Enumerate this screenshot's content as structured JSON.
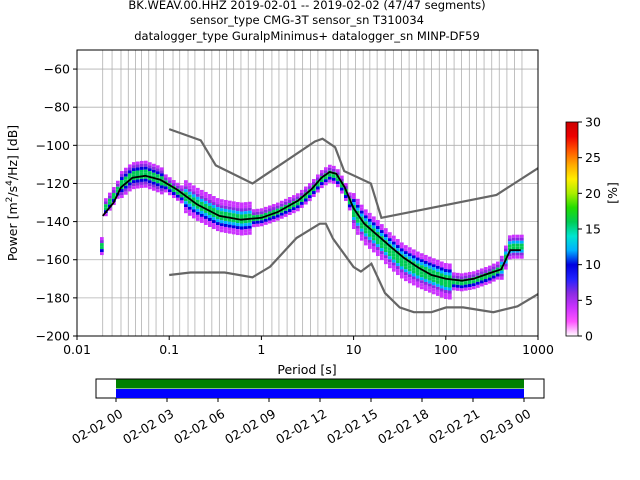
{
  "chart_data": {
    "type": "heatmap",
    "title_lines": [
      "BK.WEAV.00.HHZ   2019-02-01 -- 2019-02-02  (47/47 segments)",
      "sensor_type CMG-3T sensor_sn T310034",
      "datalogger_type GuralpMinimus+ datalogger_sn MINP-DF59"
    ],
    "xlabel": "Period [s]",
    "ylabel_parts": [
      "Power [m",
      "2",
      "/s",
      "4",
      "/Hz] [dB]"
    ],
    "x_scale": "log",
    "xlim": [
      0.01,
      1000
    ],
    "ylim": [
      -200,
      -50
    ],
    "x_tick_labels": [
      {
        "v": 0.01,
        "t": "0.01"
      },
      {
        "v": 0.1,
        "t": "0.1"
      },
      {
        "v": 1,
        "t": "1"
      },
      {
        "v": 10,
        "t": "10"
      },
      {
        "v": 100,
        "t": "100"
      },
      {
        "v": 1000,
        "t": "1000"
      }
    ],
    "y_ticks": [
      {
        "v": -60,
        "t": "−60"
      },
      {
        "v": -80,
        "t": "−80"
      },
      {
        "v": -100,
        "t": "−100"
      },
      {
        "v": -120,
        "t": "−120"
      },
      {
        "v": -140,
        "t": "−140"
      },
      {
        "v": -160,
        "t": "−160"
      },
      {
        "v": -180,
        "t": "−180"
      },
      {
        "v": -200,
        "t": "−200"
      }
    ],
    "grid_periods": [
      0.019,
      0.024,
      0.03,
      0.036,
      0.043,
      0.05,
      0.06,
      0.072,
      0.087,
      0.11,
      0.13,
      0.16,
      0.19,
      0.24,
      0.29,
      0.35,
      0.42,
      0.5,
      0.6,
      0.72,
      0.87,
      1.05,
      1.3,
      1.55,
      1.9,
      2.3,
      2.8,
      3.4,
      4.1,
      5,
      6,
      7.2,
      8.7,
      10.5,
      12.7,
      15,
      18,
      22,
      27,
      33,
      40,
      48,
      58,
      70,
      85,
      102,
      123,
      148,
      180,
      215,
      260,
      315,
      380,
      460,
      555,
      670
    ],
    "mean_curve": [
      [
        0.019,
        -137
      ],
      [
        0.025,
        -130
      ],
      [
        0.03,
        -122
      ],
      [
        0.04,
        -117
      ],
      [
        0.055,
        -116
      ],
      [
        0.08,
        -118
      ],
      [
        0.12,
        -123
      ],
      [
        0.2,
        -131
      ],
      [
        0.35,
        -137
      ],
      [
        0.6,
        -139
      ],
      [
        1,
        -138
      ],
      [
        1.5,
        -135
      ],
      [
        2.5,
        -129
      ],
      [
        3.5,
        -123
      ],
      [
        4.5,
        -117
      ],
      [
        5.5,
        -114
      ],
      [
        6.5,
        -115
      ],
      [
        8,
        -122
      ],
      [
        10,
        -133
      ],
      [
        13,
        -141
      ],
      [
        18,
        -147
      ],
      [
        25,
        -153
      ],
      [
        35,
        -159
      ],
      [
        50,
        -164
      ],
      [
        70,
        -168
      ],
      [
        100,
        -170
      ],
      [
        150,
        -171
      ],
      [
        200,
        -170
      ],
      [
        300,
        -167
      ],
      [
        400,
        -165
      ],
      [
        500,
        -155
      ],
      [
        650,
        -155
      ]
    ],
    "mode_band": [
      [
        0.019,
        -135
      ],
      [
        0.025,
        -127
      ],
      [
        0.03,
        -121
      ],
      [
        0.04,
        -116
      ],
      [
        0.055,
        -115
      ],
      [
        0.08,
        -118
      ],
      [
        0.12,
        -124
      ],
      [
        0.2,
        -131
      ],
      [
        0.35,
        -137
      ],
      [
        0.6,
        -139
      ],
      [
        1,
        -138
      ],
      [
        1.5,
        -135
      ],
      [
        2.5,
        -130
      ],
      [
        3.5,
        -124
      ],
      [
        4.5,
        -118
      ],
      [
        5.5,
        -115
      ],
      [
        6.5,
        -116
      ],
      [
        8,
        -123
      ],
      [
        10,
        -134
      ],
      [
        13,
        -142
      ],
      [
        18,
        -148
      ],
      [
        25,
        -155
      ],
      [
        35,
        -161
      ],
      [
        50,
        -165
      ],
      [
        70,
        -168
      ],
      [
        100,
        -171
      ],
      [
        150,
        -172
      ],
      [
        200,
        -171
      ],
      [
        300,
        -168
      ],
      [
        400,
        -165
      ],
      [
        500,
        -153
      ],
      [
        650,
        -153
      ]
    ],
    "nhnm": [
      [
        0.1,
        -91.5
      ],
      [
        0.22,
        -97.4
      ],
      [
        0.32,
        -110.5
      ],
      [
        0.8,
        -120
      ],
      [
        3.8,
        -98
      ],
      [
        4.6,
        -96.5
      ],
      [
        6.3,
        -101
      ],
      [
        7.9,
        -113.5
      ],
      [
        15.4,
        -120
      ],
      [
        20,
        -138
      ],
      [
        354.8,
        -126
      ],
      [
        1000,
        -112
      ]
    ],
    "nlnm": [
      [
        0.1,
        -168
      ],
      [
        0.17,
        -166.7
      ],
      [
        0.4,
        -166.7
      ],
      [
        0.8,
        -169.2
      ],
      [
        1.24,
        -163.7
      ],
      [
        2.4,
        -148.6
      ],
      [
        4.3,
        -141.1
      ],
      [
        5,
        -141.1
      ],
      [
        6,
        -149
      ],
      [
        10,
        -163.8
      ],
      [
        12,
        -166.2
      ],
      [
        15.6,
        -162.1
      ],
      [
        21.9,
        -177.5
      ],
      [
        31.6,
        -185
      ],
      [
        45,
        -187.5
      ],
      [
        70,
        -187.5
      ],
      [
        101,
        -185
      ],
      [
        154,
        -185
      ],
      [
        328,
        -187.5
      ],
      [
        600,
        -184.4
      ],
      [
        1000,
        -178
      ]
    ],
    "colorbar": {
      "label": "[%]",
      "range": [
        0,
        30
      ],
      "ticks": [
        0,
        5,
        10,
        15,
        20,
        25,
        30
      ],
      "colormap": [
        "#ffffff",
        "#ff55ff",
        "#cc33ff",
        "#8a2be2",
        "#2222ff",
        "#0000e0",
        "#00b0ff",
        "#00e5d0",
        "#00cc55",
        "#22dd00",
        "#aaee00",
        "#ffee00",
        "#ffaa00",
        "#ff5500",
        "#ee0000",
        "#cc0000"
      ]
    },
    "coverage": {
      "x_tick_labels": [
        "02-02 00",
        "02-02 03",
        "02-02 06",
        "02-02 09",
        "02-02 12",
        "02-02 15",
        "02-02 18",
        "02-02 21",
        "02-03 00"
      ],
      "bands": [
        "#008000",
        "#0000ff"
      ]
    }
  }
}
